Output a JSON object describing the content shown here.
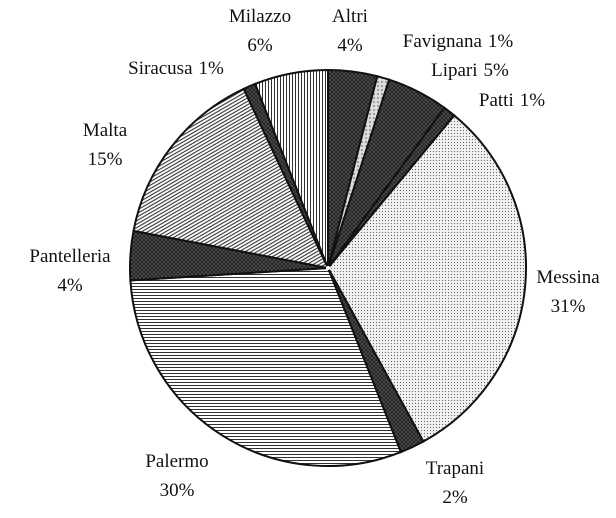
{
  "chart_data": {
    "type": "pie",
    "categories": [
      "Altri",
      "Favignana",
      "Lipari",
      "Patti",
      "Messina",
      "Trapani",
      "Palermo",
      "Pantelleria",
      "Malta",
      "Siracusa",
      "Milazzo"
    ],
    "values": [
      4,
      1,
      5,
      1,
      31,
      2,
      30,
      4,
      15,
      1,
      6
    ],
    "value_labels": [
      "4%",
      "1%",
      "5%",
      "1%",
      "31%",
      "2%",
      "30%",
      "4%",
      "15%",
      "1%",
      "6%"
    ]
  }
}
